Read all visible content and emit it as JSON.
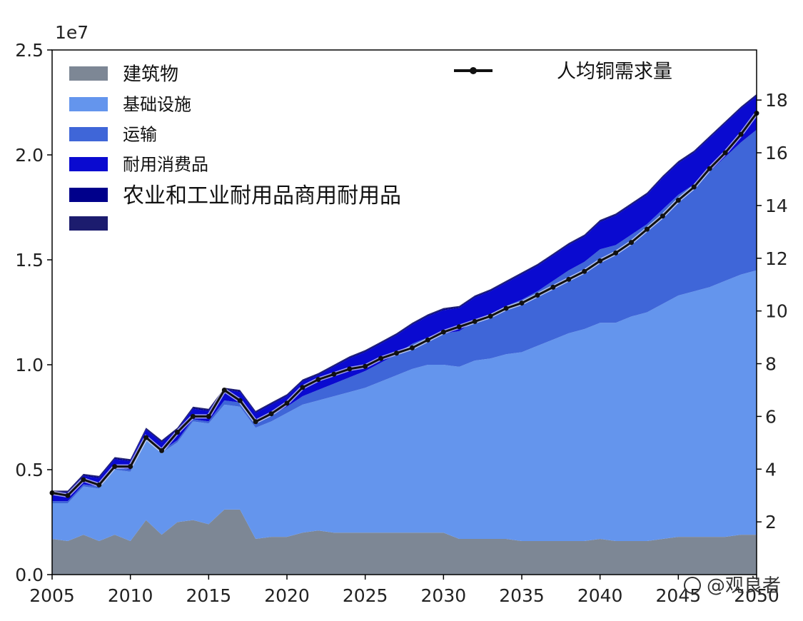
{
  "chart_data": {
    "type": "area",
    "stacked": true,
    "offset_label": "1e7",
    "x_ticks": [
      "2005",
      "2010",
      "2015",
      "2020",
      "2025",
      "2030",
      "2035",
      "2040",
      "2045",
      "2050"
    ],
    "y_ticks": [
      "0.0",
      "0.5",
      "1.0",
      "1.5",
      "2.0",
      "2.5"
    ],
    "y2_ticks": [
      "2",
      "4",
      "6",
      "8",
      "10",
      "12",
      "14",
      "16",
      "18"
    ],
    "xlim": [
      2005,
      2050
    ],
    "ylim": [
      0,
      2.5
    ],
    "y2lim": [
      0,
      19.9
    ],
    "legend_placement": "upper-left",
    "x": [
      2005,
      2006,
      2007,
      2008,
      2009,
      2010,
      2011,
      2012,
      2013,
      2014,
      2015,
      2016,
      2017,
      2018,
      2019,
      2020,
      2021,
      2022,
      2023,
      2024,
      2025,
      2026,
      2027,
      2028,
      2029,
      2030,
      2031,
      2032,
      2033,
      2034,
      2035,
      2036,
      2037,
      2038,
      2039,
      2040,
      2041,
      2042,
      2043,
      2044,
      2045,
      2046,
      2047,
      2048,
      2049,
      2050
    ],
    "series": [
      {
        "name": "建筑物",
        "color": "#7d8795",
        "values": [
          0.17,
          0.16,
          0.19,
          0.16,
          0.19,
          0.16,
          0.26,
          0.19,
          0.25,
          0.26,
          0.24,
          0.31,
          0.31,
          0.17,
          0.18,
          0.18,
          0.2,
          0.21,
          0.2,
          0.2,
          0.2,
          0.2,
          0.2,
          0.2,
          0.2,
          0.2,
          0.17,
          0.17,
          0.17,
          0.17,
          0.16,
          0.16,
          0.16,
          0.16,
          0.16,
          0.17,
          0.16,
          0.16,
          0.16,
          0.17,
          0.18,
          0.18,
          0.18,
          0.18,
          0.19,
          0.19
        ]
      },
      {
        "name": "基础设施",
        "color": "#6495ed",
        "values": [
          0.17,
          0.18,
          0.23,
          0.25,
          0.31,
          0.33,
          0.38,
          0.39,
          0.38,
          0.47,
          0.48,
          0.5,
          0.49,
          0.53,
          0.55,
          0.59,
          0.61,
          0.62,
          0.65,
          0.67,
          0.69,
          0.72,
          0.75,
          0.78,
          0.8,
          0.8,
          0.82,
          0.85,
          0.86,
          0.88,
          0.9,
          0.93,
          0.96,
          0.99,
          1.01,
          1.03,
          1.04,
          1.07,
          1.09,
          1.12,
          1.15,
          1.17,
          1.19,
          1.22,
          1.24,
          1.26
        ]
      },
      {
        "name": "运输",
        "color": "#3f66d8",
        "values": [
          0.01,
          0.01,
          0.01,
          0.01,
          0.01,
          0.01,
          0.01,
          0.01,
          0.01,
          0.01,
          0.01,
          0.02,
          0.02,
          0.02,
          0.03,
          0.03,
          0.04,
          0.05,
          0.06,
          0.07,
          0.08,
          0.09,
          0.1,
          0.12,
          0.13,
          0.15,
          0.17,
          0.19,
          0.21,
          0.23,
          0.25,
          0.26,
          0.28,
          0.3,
          0.32,
          0.35,
          0.37,
          0.39,
          0.42,
          0.45,
          0.48,
          0.51,
          0.55,
          0.59,
          0.63,
          0.67
        ]
      },
      {
        "name": "耐用消费品",
        "color": "#0a0ad0",
        "values": [
          0.04,
          0.04,
          0.04,
          0.04,
          0.04,
          0.04,
          0.04,
          0.04,
          0.05,
          0.05,
          0.05,
          0.05,
          0.05,
          0.05,
          0.05,
          0.05,
          0.07,
          0.07,
          0.08,
          0.09,
          0.09,
          0.09,
          0.09,
          0.09,
          0.1,
          0.11,
          0.11,
          0.11,
          0.11,
          0.11,
          0.12,
          0.12,
          0.12,
          0.12,
          0.12,
          0.13,
          0.14,
          0.14,
          0.14,
          0.15,
          0.15,
          0.15,
          0.16,
          0.16,
          0.16,
          0.16
        ]
      },
      {
        "name": "农业和工业耐用品商用耐用品",
        "color": "#00008b",
        "values": [
          0.005,
          0.005,
          0.005,
          0.005,
          0.005,
          0.005,
          0.005,
          0.005,
          0.005,
          0.005,
          0.005,
          0.005,
          0.005,
          0.005,
          0.005,
          0.005,
          0.005,
          0.005,
          0.005,
          0.005,
          0.005,
          0.005,
          0.005,
          0.005,
          0.005,
          0.005,
          0.005,
          0.005,
          0.005,
          0.005,
          0.005,
          0.005,
          0.005,
          0.005,
          0.005,
          0.005,
          0.005,
          0.005,
          0.005,
          0.005,
          0.005,
          0.005,
          0.005,
          0.005,
          0.005,
          0.005
        ]
      },
      {
        "name": "",
        "color": "#1c1c6e",
        "values": [
          0.005,
          0.005,
          0.005,
          0.005,
          0.005,
          0.005,
          0.005,
          0.005,
          0.005,
          0.005,
          0.005,
          0.005,
          0.005,
          0.005,
          0.005,
          0.005,
          0.005,
          0.005,
          0.005,
          0.005,
          0.005,
          0.005,
          0.005,
          0.005,
          0.005,
          0.005,
          0.005,
          0.005,
          0.005,
          0.005,
          0.005,
          0.005,
          0.005,
          0.005,
          0.005,
          0.005,
          0.005,
          0.005,
          0.005,
          0.005,
          0.005,
          0.005,
          0.005,
          0.005,
          0.005,
          0.005
        ]
      }
    ],
    "line_series": {
      "name": "人均铜需求量",
      "axis": "right",
      "color": "#111111",
      "values": [
        3.1,
        3.0,
        3.6,
        3.4,
        4.1,
        4.1,
        5.2,
        4.7,
        5.4,
        6.0,
        6.0,
        7.0,
        6.6,
        5.8,
        6.1,
        6.5,
        7.1,
        7.4,
        7.6,
        7.8,
        7.9,
        8.2,
        8.4,
        8.6,
        8.9,
        9.2,
        9.4,
        9.6,
        9.8,
        10.1,
        10.3,
        10.6,
        10.9,
        11.2,
        11.5,
        11.9,
        12.2,
        12.6,
        13.1,
        13.6,
        14.2,
        14.7,
        15.4,
        16.0,
        16.7,
        17.5
      ]
    }
  },
  "watermark": "@观良者",
  "watermark_icon": "weibo-icon"
}
